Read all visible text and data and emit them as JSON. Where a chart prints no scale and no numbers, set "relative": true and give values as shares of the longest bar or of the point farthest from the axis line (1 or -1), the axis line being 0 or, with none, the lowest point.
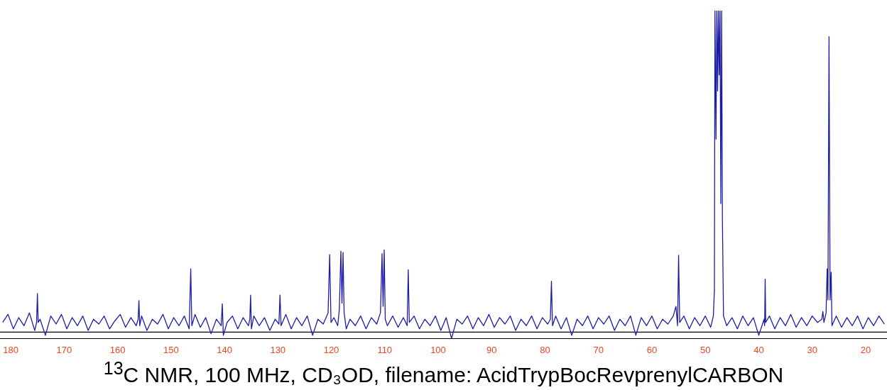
{
  "chart_data": {
    "type": "line",
    "title": "$^{13}$C NMR, 100 MHz, CD₃OD, filename: AcidTrypBocRevprenylCARBON",
    "relative": true,
    "marker": "none",
    "color": "#1c1ca6",
    "xlim": [
      182,
      16
    ],
    "xticks": [
      180,
      170,
      160,
      150,
      140,
      130,
      120,
      110,
      100,
      90,
      80,
      70,
      60,
      50,
      40,
      30,
      20
    ],
    "x": [
      181.5,
      180.5,
      179.5,
      178.5,
      177.5,
      176.5,
      175.5,
      175.15,
      175.0,
      174.85,
      174.5,
      173.5,
      172.5,
      171.5,
      170.5,
      169.5,
      168.5,
      167.5,
      166.5,
      165.5,
      164.5,
      163.5,
      162.5,
      161.5,
      160.5,
      159.5,
      158.5,
      157.5,
      156.5,
      156.15,
      156.0,
      155.85,
      155.5,
      154.5,
      153.5,
      152.5,
      151.5,
      150.5,
      149.5,
      148.5,
      147.5,
      146.6,
      146.3,
      146.1,
      145.5,
      144.5,
      143.5,
      142.5,
      141.5,
      140.6,
      140.4,
      140.2,
      139.5,
      138.5,
      137.5,
      136.5,
      135.5,
      135.25,
      135.1,
      134.95,
      134.5,
      133.5,
      132.5,
      131.5,
      130.5,
      129.8,
      129.6,
      129.4,
      128.5,
      127.5,
      126.5,
      125.5,
      124.5,
      123.5,
      122.5,
      121.5,
      120.6,
      120.3,
      120.05,
      119.5,
      118.8,
      118.5,
      118.2,
      118.0,
      117.8,
      117.6,
      117.2,
      116.5,
      115.5,
      114.5,
      113.5,
      112.5,
      111.5,
      110.8,
      110.5,
      110.3,
      110.1,
      109.9,
      109.5,
      108.5,
      107.5,
      106.5,
      105.8,
      105.6,
      105.4,
      104.5,
      103.5,
      102.5,
      101.5,
      100.5,
      99.5,
      98.5,
      97.5,
      96.5,
      95.5,
      94.5,
      93.5,
      92.5,
      91.5,
      90.5,
      89.5,
      88.5,
      87.5,
      86.5,
      85.5,
      84.5,
      83.5,
      82.5,
      81.5,
      80.5,
      79.5,
      79.0,
      78.8,
      78.6,
      78.0,
      77.0,
      76.0,
      75.0,
      74.0,
      73.0,
      72.0,
      71.0,
      70.0,
      69.0,
      68.0,
      67.0,
      66.0,
      65.0,
      64.0,
      63.0,
      62.0,
      61.0,
      60.0,
      59.0,
      58.0,
      57.0,
      56.0,
      55.5,
      55.2,
      55.0,
      54.8,
      54.0,
      53.0,
      52.0,
      51.0,
      50.0,
      49.0,
      48.5,
      48.3,
      48.2,
      48.0,
      47.85,
      47.7,
      47.55,
      47.4,
      47.25,
      47.1,
      46.95,
      46.8,
      46.6,
      46.0,
      45.0,
      44.0,
      43.0,
      42.0,
      41.0,
      40.0,
      39.0,
      38.9,
      38.8,
      38.7,
      38.0,
      37.0,
      36.0,
      35.0,
      34.0,
      33.0,
      32.0,
      31.0,
      30.0,
      29.0,
      28.2,
      28.0,
      27.8,
      27.4,
      27.2,
      27.05,
      26.85,
      26.65,
      26.45,
      26.3,
      25.5,
      24.5,
      23.5,
      22.5,
      21.5,
      20.5,
      19.5,
      18.5,
      17.5,
      16.5
    ],
    "values": [
      0.03,
      0.055,
      0.01,
      0.045,
      0.02,
      0.06,
      0.005,
      0.03,
      0.12,
      0.03,
      0.04,
      -0.01,
      0.05,
      0.025,
      0.055,
      0.01,
      0.045,
      0.02,
      0.05,
      0.005,
      0.04,
      0.025,
      0.05,
      0.01,
      0.035,
      0.055,
      0.015,
      0.045,
      0.02,
      0.04,
      0.098,
      0.02,
      0.05,
      0.005,
      0.04,
      0.025,
      0.055,
      0.01,
      0.045,
      0.02,
      0.05,
      0.01,
      0.197,
      0.02,
      0.055,
      0.015,
      0.045,
      -0.005,
      0.04,
      0.02,
      0.088,
      -0.01,
      0.03,
      0.05,
      0.01,
      0.045,
      0.02,
      0.04,
      0.115,
      0.01,
      0.05,
      0.02,
      0.045,
      0.005,
      0.04,
      0.025,
      0.115,
      0.02,
      0.055,
      0.01,
      0.045,
      0.02,
      0.05,
      -0.01,
      0.04,
      0.025,
      0.06,
      0.241,
      0.03,
      0.045,
      0.02,
      0.07,
      0.252,
      0.09,
      0.248,
      0.06,
      0.01,
      0.04,
      0.02,
      0.05,
      0.01,
      0.045,
      0.025,
      0.06,
      0.244,
      0.08,
      0.256,
      0.04,
      0.02,
      0.05,
      0.015,
      0.045,
      0.02,
      0.194,
      0.03,
      0.05,
      0.01,
      0.04,
      0.02,
      0.05,
      0.005,
      0.045,
      -0.02,
      0.04,
      0.025,
      0.05,
      0.01,
      0.045,
      0.02,
      0.055,
      0.015,
      0.045,
      0.025,
      0.05,
      0.005,
      0.04,
      0.02,
      0.05,
      0.01,
      0.045,
      0.025,
      0.04,
      0.158,
      0.02,
      0.05,
      0.01,
      0.045,
      -0.01,
      0.04,
      0.02,
      0.05,
      0.01,
      0.045,
      0.025,
      0.05,
      0.005,
      0.04,
      0.02,
      0.05,
      -0.01,
      0.045,
      0.02,
      0.05,
      0.01,
      0.04,
      0.025,
      0.05,
      0.08,
      0.02,
      0.239,
      0.03,
      0.05,
      0.01,
      0.045,
      0.02,
      0.05,
      0.015,
      0.05,
      0.13,
      1,
      0.6,
      1,
      0.75,
      1,
      0.8,
      1,
      0.4,
      1,
      0.35,
      0.05,
      0.02,
      0.045,
      0.01,
      0.05,
      0.02,
      0.045,
      -0.01,
      0.04,
      0.02,
      0.165,
      0.03,
      0.05,
      0.01,
      0.045,
      0.02,
      0.055,
      0.015,
      0.045,
      0.02,
      0.05,
      0.03,
      0.04,
      0.064,
      0.03,
      0.06,
      0.197,
      0.1,
      0.919,
      0.1,
      0.186,
      0.02,
      0.05,
      0.015,
      0.045,
      0.02,
      0.05,
      0.01,
      0.045,
      0.02,
      0.05,
      0.025
    ]
  }
}
